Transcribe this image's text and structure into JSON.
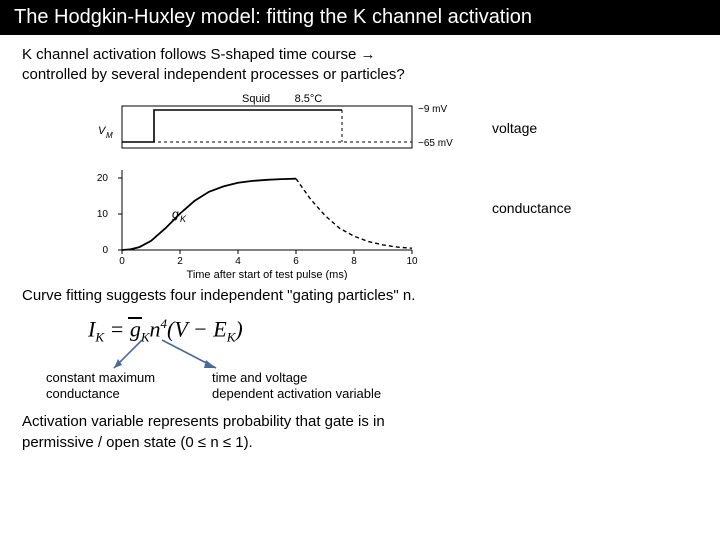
{
  "title": "The Hodgkin-Huxley model: fitting the K channel activation",
  "intro_line1": "K channel activation follows S-shaped time course →",
  "intro_line2": "controlled by several independent processes or particles?",
  "voltage_panel": {
    "label": "voltage",
    "top_text": "Squid        8.5°C",
    "right_top": "−9 mV",
    "right_bottom": "−65 mV",
    "left_label": "VM",
    "background": "#ffffff",
    "axis_color": "#000000",
    "step_color": "#000000",
    "dash_color": "#555555"
  },
  "conductance_panel": {
    "label": "conductance",
    "y_axis_label": "gK",
    "y_ticks": [
      0,
      10,
      20
    ],
    "x_ticks": [
      0,
      2,
      4,
      6,
      8,
      10
    ],
    "x_label": "Time after start of test pulse (ms)",
    "curve_color": "#000000",
    "dash_color": "#555555",
    "axis_color": "#000000",
    "background": "#ffffff",
    "curve_points": [
      [
        0,
        0
      ],
      [
        0.3,
        0.2
      ],
      [
        0.6,
        0.8
      ],
      [
        1.0,
        2.5
      ],
      [
        1.5,
        6
      ],
      [
        2.0,
        10
      ],
      [
        2.5,
        13.5
      ],
      [
        3.0,
        16
      ],
      [
        3.5,
        17.5
      ],
      [
        4.0,
        18.5
      ],
      [
        4.5,
        19
      ],
      [
        5.0,
        19.3
      ],
      [
        5.5,
        19.5
      ],
      [
        6.0,
        19.6
      ]
    ],
    "decay_points": [
      [
        6.0,
        19.6
      ],
      [
        6.5,
        14
      ],
      [
        7.0,
        9.5
      ],
      [
        7.5,
        6
      ],
      [
        8.0,
        3.8
      ],
      [
        8.5,
        2.3
      ],
      [
        9.0,
        1.4
      ],
      [
        9.5,
        0.8
      ],
      [
        10.0,
        0.5
      ]
    ],
    "ylim": [
      0,
      22
    ],
    "xlim": [
      0,
      10
    ]
  },
  "curve_fit_text": "Curve fitting suggests four independent \"gating particles\" n.",
  "equation": {
    "lhs": "I",
    "lhs_sub": "K",
    "eq": " = ",
    "gbar": "g",
    "gbar_sub": "K",
    "n": "n",
    "n_sup": "4",
    "paren_l": "(",
    "v": "V − E",
    "e_sub": "K",
    "paren_r": ")"
  },
  "annot_left_1": "constant maximum",
  "annot_left_2": "conductance",
  "annot_right_1": "time and voltage",
  "annot_right_2": "dependent activation variable",
  "closing_1": "Activation variable represents probability that gate is in",
  "closing_2": "permissive / open state (0 ≤ n ≤ 1).",
  "colors": {
    "title_bg": "#000000",
    "title_fg": "#ffffff",
    "text": "#000000",
    "arrow": "#4a6a9a"
  }
}
